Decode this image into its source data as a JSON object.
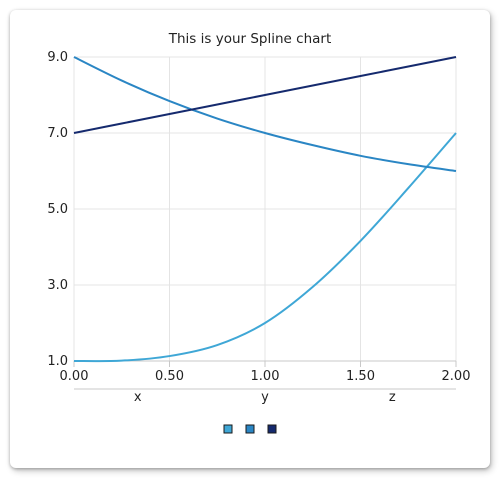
{
  "chart_data": {
    "type": "line",
    "title": "This is your Spline chart",
    "x": [
      0,
      0.25,
      0.5,
      0.75,
      1.0,
      1.25,
      1.5,
      1.75,
      2.0
    ],
    "x_ticks": [
      "0.00",
      "0.50",
      "1.00",
      "1.50",
      "2.00"
    ],
    "y_ticks": [
      "1.0",
      "3.0",
      "5.0",
      "7.0",
      "9.0"
    ],
    "xlim": [
      0,
      2
    ],
    "ylim": [
      1,
      9
    ],
    "categories": [
      "x",
      "y",
      "z"
    ],
    "series": [
      {
        "color": "#3fa7d6",
        "values": [
          1.0,
          1.01,
          1.13,
          1.42,
          2.0,
          2.95,
          4.16,
          5.55,
          7.0
        ]
      },
      {
        "color": "#2a86c4",
        "values": [
          9.0,
          8.38,
          7.84,
          7.38,
          7.0,
          6.68,
          6.4,
          6.18,
          6.0
        ]
      },
      {
        "color": "#152a6e",
        "values": [
          7.0,
          7.25,
          7.5,
          7.75,
          8.0,
          8.25,
          8.5,
          8.75,
          9.0
        ]
      }
    ],
    "legend": "bottom-center",
    "grid": true
  }
}
